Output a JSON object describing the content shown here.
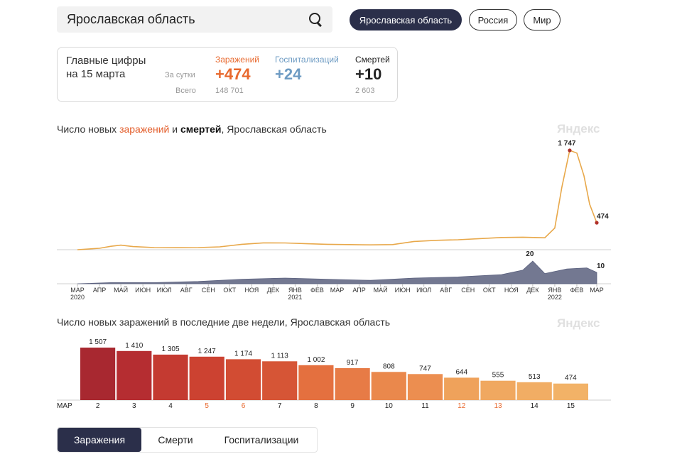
{
  "search": {
    "value": "Ярославская область"
  },
  "region_tabs": [
    {
      "label": "Ярославская область",
      "active": true
    },
    {
      "label": "Россия",
      "active": false
    },
    {
      "label": "Мир",
      "active": false
    }
  ],
  "summary": {
    "title_line1": "Главные цифры",
    "title_line2": "на 15 марта",
    "per_day_label": "За сутки",
    "total_label": "Всего",
    "columns": [
      {
        "label": "Заражений",
        "daily": "+474",
        "total": "148 701",
        "color": "#e8692e"
      },
      {
        "label": "Госпитализаций",
        "daily": "+24",
        "total": "",
        "color": "#6d9bc3"
      },
      {
        "label": "Смертей",
        "daily": "+10",
        "total": "2 603",
        "color": "#222222"
      }
    ]
  },
  "chart1": {
    "title_p1": "Число новых ",
    "title_p2": "заражений",
    "title_p3": " и ",
    "title_p4": "смертей",
    "title_p5": ", Ярославская область",
    "watermark": "Яндекс"
  },
  "chart2": {
    "title": "Число новых заражений в последние две недели, Ярославская область",
    "watermark": "Яндекс"
  },
  "bottom_tabs": [
    {
      "label": "Заражения",
      "active": true
    },
    {
      "label": "Смерти",
      "active": false
    },
    {
      "label": "Госпитализации",
      "active": false
    }
  ],
  "chart_data": [
    {
      "type": "line",
      "x": [
        "2020-03",
        "2020-04",
        "2020-05",
        "2020-06",
        "2020-07",
        "2020-08",
        "2020-09",
        "2020-10",
        "2020-11",
        "2020-12",
        "2021-01",
        "2021-02",
        "2021-03",
        "2021-04",
        "2021-05",
        "2021-06",
        "2021-07",
        "2021-08",
        "2021-09",
        "2021-10",
        "2021-11",
        "2021-12",
        "2022-01",
        "2022-02",
        "2022-03"
      ],
      "x_tick_labels": [
        "МАР",
        "АПР",
        "МАЙ",
        "ИЮН",
        "ИЮЛ",
        "АВГ",
        "СЕН",
        "ОКТ",
        "НОЯ",
        "ДЕК",
        "ЯНВ",
        "ФЕВ",
        "МАР",
        "АПР",
        "МАЙ",
        "ИЮН",
        "ИЮЛ",
        "АВГ",
        "СЕН",
        "ОКТ",
        "НОЯ",
        "ДЕК",
        "ЯНВ",
        "ФЕВ",
        "МАР"
      ],
      "year_labels": [
        {
          "at": "2020-03",
          "label": "2020"
        },
        {
          "at": "2021-01",
          "label": "2021"
        },
        {
          "at": "2022-01",
          "label": "2022"
        }
      ],
      "series": [
        {
          "name": "заражений",
          "color": "#e8a84a",
          "points": [
            [
              "2020-03-15",
              0
            ],
            [
              "2020-04-15",
              25
            ],
            [
              "2020-05-01",
              60
            ],
            [
              "2020-05-15",
              80
            ],
            [
              "2020-06-01",
              55
            ],
            [
              "2020-07-01",
              38
            ],
            [
              "2020-08-01",
              35
            ],
            [
              "2020-09-01",
              38
            ],
            [
              "2020-10-01",
              50
            ],
            [
              "2020-11-01",
              95
            ],
            [
              "2020-12-01",
              120
            ],
            [
              "2021-01-01",
              118
            ],
            [
              "2021-02-01",
              105
            ],
            [
              "2021-03-01",
              95
            ],
            [
              "2021-04-01",
              90
            ],
            [
              "2021-05-01",
              85
            ],
            [
              "2021-06-01",
              90
            ],
            [
              "2021-07-01",
              145
            ],
            [
              "2021-08-01",
              165
            ],
            [
              "2021-09-01",
              175
            ],
            [
              "2021-10-01",
              195
            ],
            [
              "2021-11-01",
              215
            ],
            [
              "2021-12-01",
              220
            ],
            [
              "2022-01-01",
              210
            ],
            [
              "2022-01-15",
              380
            ],
            [
              "2022-01-25",
              1100
            ],
            [
              "2022-02-05",
              1747
            ],
            [
              "2022-02-15",
              1700
            ],
            [
              "2022-02-25",
              1300
            ],
            [
              "2022-03-05",
              800
            ],
            [
              "2022-03-15",
              474
            ]
          ]
        },
        {
          "name": "смертей",
          "color": "#5a607e",
          "points": [
            [
              "2020-03-15",
              0
            ],
            [
              "2020-05-01",
              1
            ],
            [
              "2020-07-01",
              1
            ],
            [
              "2020-09-01",
              2
            ],
            [
              "2020-11-01",
              4
            ],
            [
              "2021-01-01",
              5
            ],
            [
              "2021-03-01",
              4
            ],
            [
              "2021-05-01",
              3
            ],
            [
              "2021-07-01",
              5
            ],
            [
              "2021-09-01",
              6
            ],
            [
              "2021-11-01",
              8
            ],
            [
              "2021-12-01",
              12
            ],
            [
              "2021-12-15",
              20
            ],
            [
              "2022-01-01",
              9
            ],
            [
              "2022-02-01",
              13
            ],
            [
              "2022-03-01",
              14
            ],
            [
              "2022-03-15",
              10
            ]
          ]
        }
      ],
      "annotations": [
        {
          "series": "заражений",
          "label": "1 747",
          "value": 1747
        },
        {
          "series": "заражений",
          "label": "474",
          "value": 474
        },
        {
          "series": "смертей",
          "label": "20",
          "value": 20
        },
        {
          "series": "смертей",
          "label": "10",
          "value": 10
        }
      ],
      "grid": false
    },
    {
      "type": "bar",
      "month_label": "МАР",
      "categories": [
        "2",
        "3",
        "4",
        "5",
        "6",
        "7",
        "8",
        "9",
        "10",
        "11",
        "12",
        "13",
        "14",
        "15"
      ],
      "values": [
        1507,
        1410,
        1305,
        1247,
        1174,
        1113,
        1002,
        917,
        808,
        747,
        644,
        555,
        513,
        474
      ],
      "value_labels": [
        "1 507",
        "1 410",
        "1 305",
        "1 247",
        "1 174",
        "1 113",
        "1 002",
        "917",
        "808",
        "747",
        "644",
        "555",
        "513",
        "474"
      ],
      "bar_colors": [
        "#a82830",
        "#b52d31",
        "#c43a31",
        "#cc4231",
        "#d24c33",
        "#d65536",
        "#e4703f",
        "#e77b46",
        "#ea884c",
        "#ec8e50",
        "#efa25b",
        "#f0a860",
        "#f1ad64",
        "#f2b267"
      ],
      "highlight_categories": [
        "5",
        "6",
        "12",
        "13"
      ],
      "highlight_color": "#e8692e",
      "ylim": [
        0,
        1600
      ],
      "grid": false
    }
  ]
}
